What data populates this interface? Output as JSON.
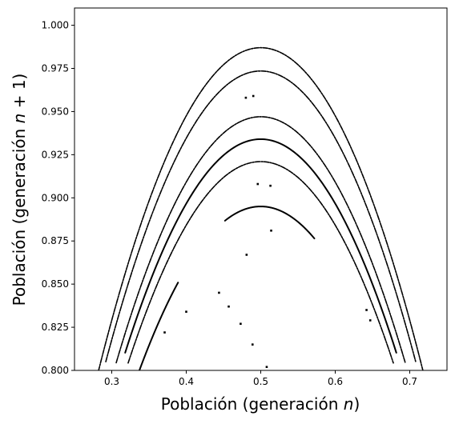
{
  "chart_data": {
    "type": "scatter",
    "xlabel": "Población (generación n)",
    "ylabel": "Población (generación n + 1)",
    "xlabel_parts": {
      "prefix": "Población (generación ",
      "var": "n",
      "suffix": ")"
    },
    "ylabel_parts": {
      "prefix": "Población (generación ",
      "var": "n",
      "suffix": " + 1)"
    },
    "xlim": [
      0.25,
      0.75
    ],
    "ylim": [
      0.8,
      1.01
    ],
    "xticks": [
      0.3,
      0.4,
      0.5,
      0.6,
      0.7
    ],
    "yticks": [
      0.8,
      0.825,
      0.85,
      0.875,
      0.9,
      0.925,
      0.95,
      0.975,
      1.0
    ],
    "xtick_labels": [
      "0.3",
      "0.4",
      "0.5",
      "0.6",
      "0.7"
    ],
    "ytick_labels": [
      "0.800",
      "0.825",
      "0.850",
      "0.875",
      "0.900",
      "0.925",
      "0.950",
      "0.975",
      "1.000"
    ],
    "grid": false,
    "marker_color": "#000000",
    "curves": [
      {
        "r": 3.948,
        "x_range": [
          0.282,
          0.718
        ],
        "style": "dashed"
      },
      {
        "r": 3.894,
        "x_range": [
          0.292,
          0.708
        ],
        "style": "dashed"
      },
      {
        "r": 3.788,
        "x_range": [
          0.306,
          0.694
        ],
        "style": "dashed"
      },
      {
        "r": 3.736,
        "x_range": [
          0.318,
          0.682
        ],
        "style": "solid"
      },
      {
        "r": 3.684,
        "x_range": [
          0.322,
          0.678
        ],
        "style": "dashed"
      },
      {
        "r": 3.58,
        "x_range": [
          0.452,
          0.572
        ],
        "style": "solid"
      },
      {
        "r": 3.58,
        "x_range": [
          0.337,
          0.389
        ],
        "style": "solid"
      }
    ],
    "points": [
      {
        "x": 0.48,
        "y": 0.958
      },
      {
        "x": 0.49,
        "y": 0.959
      },
      {
        "x": 0.496,
        "y": 0.908
      },
      {
        "x": 0.513,
        "y": 0.907
      },
      {
        "x": 0.514,
        "y": 0.881
      },
      {
        "x": 0.481,
        "y": 0.867
      },
      {
        "x": 0.444,
        "y": 0.845
      },
      {
        "x": 0.457,
        "y": 0.837
      },
      {
        "x": 0.4,
        "y": 0.834
      },
      {
        "x": 0.371,
        "y": 0.822
      },
      {
        "x": 0.473,
        "y": 0.827
      },
      {
        "x": 0.489,
        "y": 0.815
      },
      {
        "x": 0.508,
        "y": 0.802
      },
      {
        "x": 0.642,
        "y": 0.835
      },
      {
        "x": 0.647,
        "y": 0.829
      }
    ]
  }
}
